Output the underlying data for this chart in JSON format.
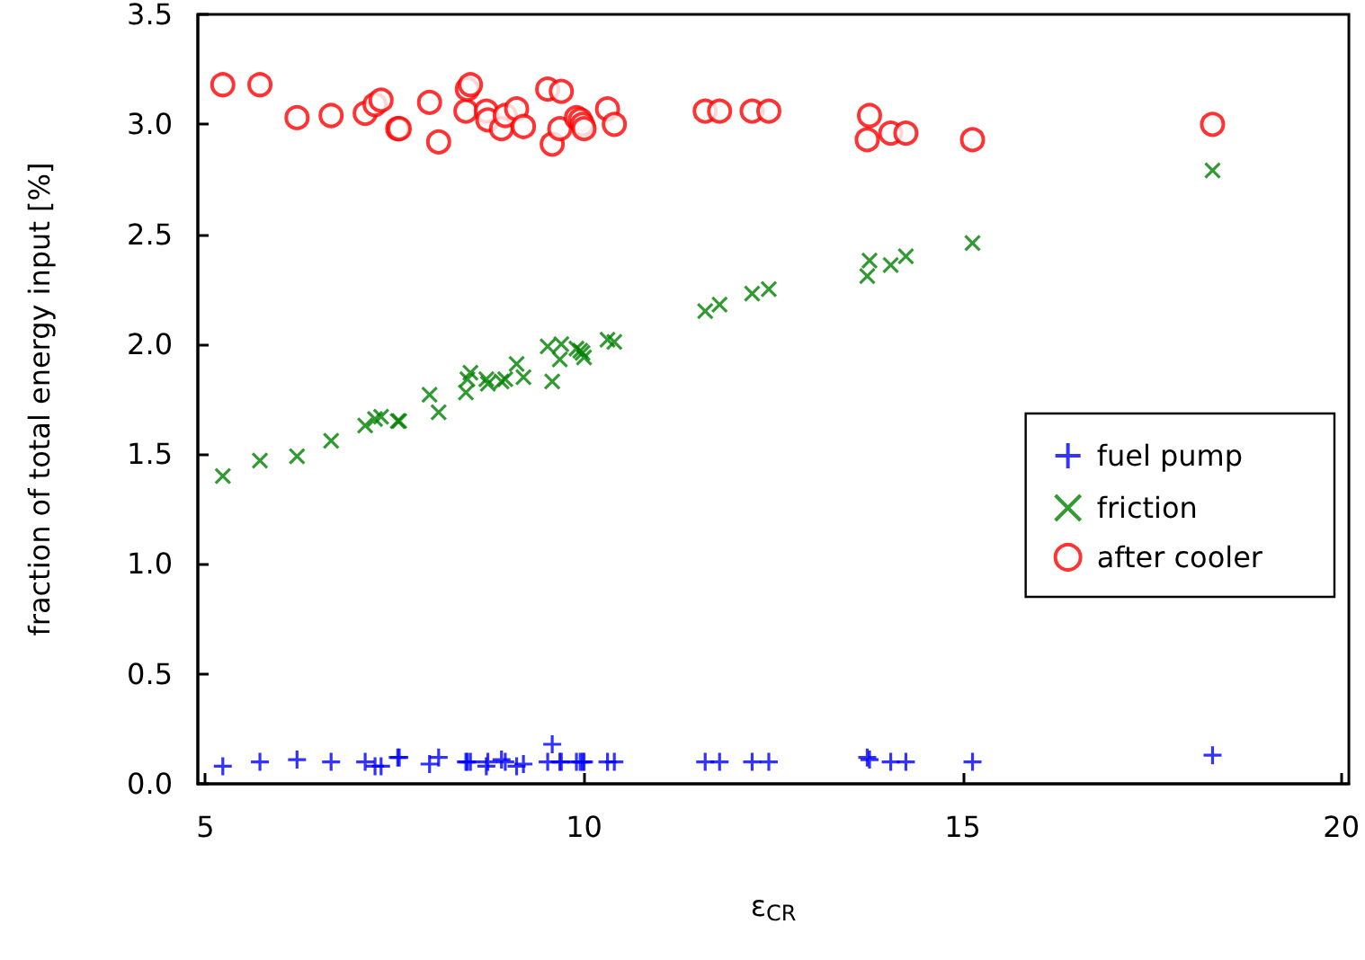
{
  "chart_data": {
    "type": "scatter",
    "xlabel": "ε$_{CR}$",
    "ylabel": "fraction of total energy input [%]",
    "x": [
      5.23,
      5.72,
      6.21,
      6.66,
      7.11,
      7.24,
      7.32,
      7.54,
      7.56,
      7.96,
      8.08,
      8.44,
      8.46,
      8.5,
      8.71,
      8.73,
      8.91,
      8.96,
      9.11,
      9.2,
      9.52,
      9.58,
      9.68,
      9.7,
      9.9,
      9.95,
      9.98,
      10.0,
      10.31,
      10.4,
      11.6,
      11.79,
      12.22,
      12.44,
      13.74,
      13.77,
      14.05,
      14.25,
      15.13,
      18.3
    ],
    "series": [
      {
        "name": "fuel pump",
        "color": "#0000ff",
        "marker": "plus",
        "values": [
          0.08,
          0.1,
          0.11,
          0.1,
          0.1,
          0.08,
          0.08,
          0.12,
          0.12,
          0.09,
          0.12,
          0.1,
          0.1,
          0.1,
          0.08,
          0.1,
          0.11,
          0.1,
          0.08,
          0.09,
          0.1,
          0.18,
          0.1,
          0.1,
          0.1,
          0.1,
          0.1,
          0.1,
          0.1,
          0.1,
          0.1,
          0.1,
          0.1,
          0.1,
          0.12,
          0.11,
          0.1,
          0.1,
          0.1,
          0.13
        ]
      },
      {
        "name": "friction",
        "color": "#008000",
        "marker": "cross",
        "values": [
          1.4,
          1.47,
          1.49,
          1.56,
          1.63,
          1.66,
          1.67,
          1.65,
          1.65,
          1.77,
          1.69,
          1.78,
          1.84,
          1.87,
          1.84,
          1.82,
          1.83,
          1.84,
          1.91,
          1.85,
          1.99,
          1.83,
          1.93,
          2.0,
          1.98,
          1.97,
          1.96,
          1.94,
          2.02,
          2.01,
          2.15,
          2.18,
          2.23,
          2.25,
          2.31,
          2.38,
          2.36,
          2.4,
          2.46,
          2.79
        ]
      },
      {
        "name": "after cooler",
        "color": "#ff0000",
        "marker": "circle",
        "values": [
          3.18,
          3.18,
          3.03,
          3.04,
          3.05,
          3.09,
          3.11,
          2.98,
          2.98,
          3.1,
          2.92,
          3.06,
          3.16,
          3.18,
          3.06,
          3.02,
          2.98,
          3.04,
          3.07,
          2.99,
          3.16,
          2.91,
          2.98,
          3.15,
          3.03,
          3.02,
          3.0,
          2.98,
          3.07,
          3.0,
          3.06,
          3.06,
          3.06,
          3.06,
          2.93,
          3.04,
          2.96,
          2.96,
          2.93,
          3.0
        ]
      }
    ],
    "xlim": [
      4.9,
      20.1
    ],
    "xticks": [
      5,
      10,
      15,
      20
    ],
    "ylim": [
      0,
      3.5
    ],
    "yticks": [
      {
        "value": 0,
        "label": "0.0"
      },
      0.5,
      {
        "value": 1,
        "label": "1.0"
      },
      1.5,
      {
        "value": 2,
        "label": "2.0"
      },
      2.5,
      {
        "value": 3,
        "label": "3.0"
      },
      3.5
    ],
    "grid": false,
    "legend": "right"
  }
}
